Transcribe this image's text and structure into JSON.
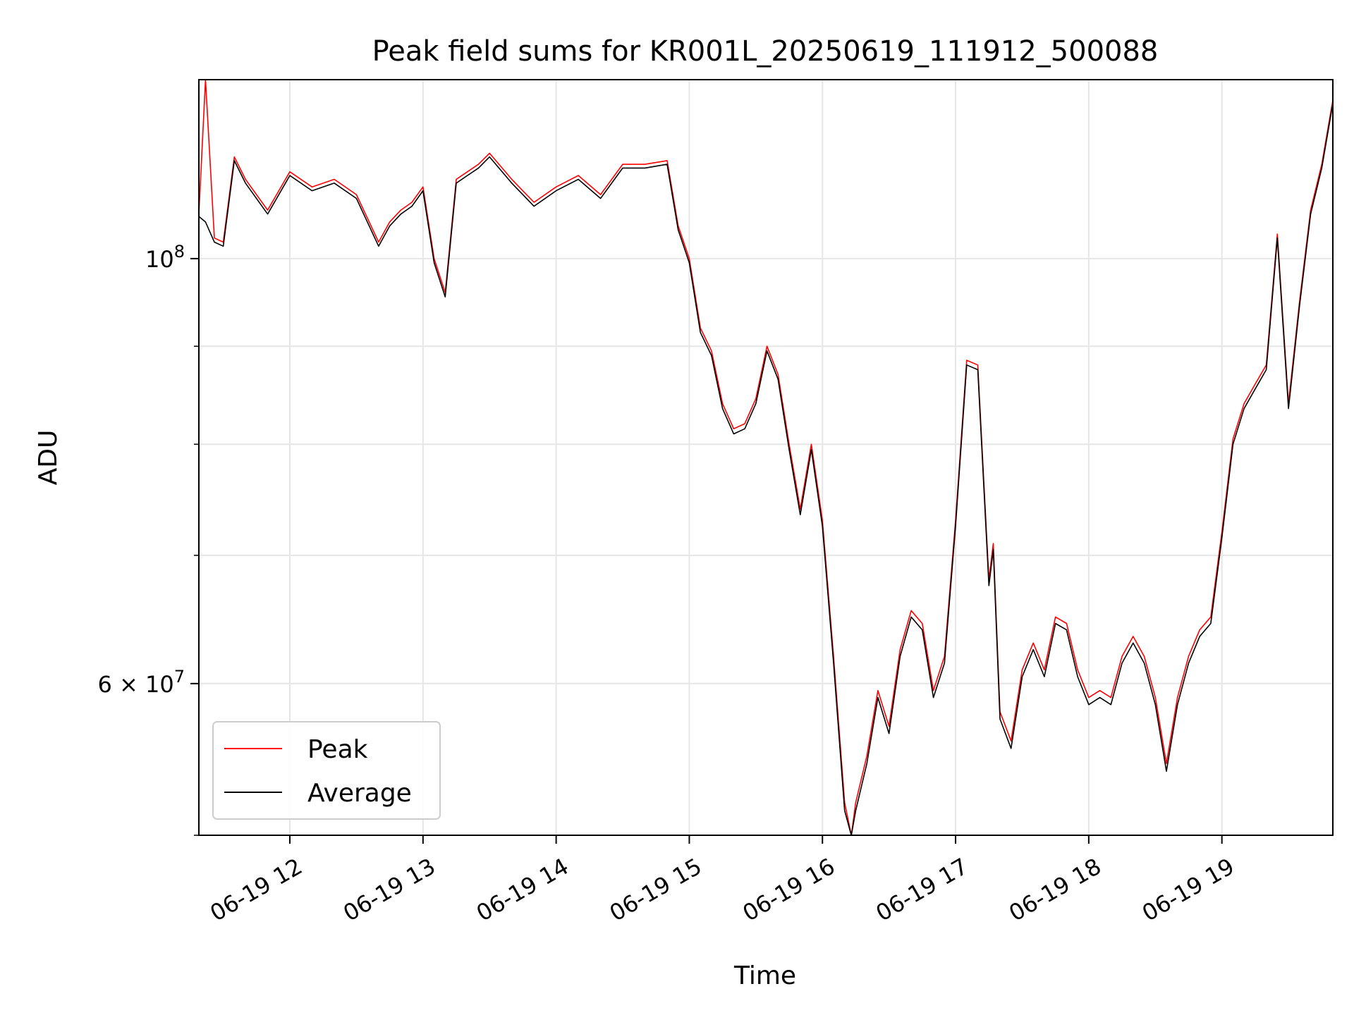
{
  "chart_data": {
    "type": "line",
    "title": "Peak field sums for KR001L_20250619_111912_500088",
    "xlabel": "Time",
    "ylabel": "ADU",
    "yscale": "log",
    "xlim": [
      "2025-06-19 11:19",
      "2025-06-19 19:50"
    ],
    "ylim": [
      50000000,
      124000000
    ],
    "grid": true,
    "legend_position": "lower-left",
    "x_ticks": [
      "06-19 12",
      "06-19 13",
      "06-19 14",
      "06-19 15",
      "06-19 16",
      "06-19 17",
      "06-19 18",
      "06-19 19"
    ],
    "y_tick_labels": [
      {
        "value": 100000000,
        "mantissa": "",
        "base": "10",
        "exp": "8"
      },
      {
        "value": 60000000,
        "mantissa": "6 × ",
        "base": "10",
        "exp": "7"
      }
    ],
    "y_minor_ticks": [
      50000000,
      70000000,
      80000000,
      90000000
    ],
    "x": [
      "2025-06-19 11:19",
      "2025-06-19 11:22",
      "2025-06-19 11:26",
      "2025-06-19 11:30",
      "2025-06-19 11:35",
      "2025-06-19 11:40",
      "2025-06-19 11:50",
      "2025-06-19 12:00",
      "2025-06-19 12:10",
      "2025-06-19 12:20",
      "2025-06-19 12:30",
      "2025-06-19 12:40",
      "2025-06-19 12:45",
      "2025-06-19 12:50",
      "2025-06-19 12:55",
      "2025-06-19 13:00",
      "2025-06-19 13:05",
      "2025-06-19 13:10",
      "2025-06-19 13:15",
      "2025-06-19 13:20",
      "2025-06-19 13:25",
      "2025-06-19 13:30",
      "2025-06-19 13:40",
      "2025-06-19 13:50",
      "2025-06-19 14:00",
      "2025-06-19 14:10",
      "2025-06-19 14:20",
      "2025-06-19 14:30",
      "2025-06-19 14:40",
      "2025-06-19 14:50",
      "2025-06-19 14:55",
      "2025-06-19 15:00",
      "2025-06-19 15:05",
      "2025-06-19 15:10",
      "2025-06-19 15:15",
      "2025-06-19 15:20",
      "2025-06-19 15:25",
      "2025-06-19 15:30",
      "2025-06-19 15:35",
      "2025-06-19 15:40",
      "2025-06-19 15:45",
      "2025-06-19 15:50",
      "2025-06-19 15:55",
      "2025-06-19 16:00",
      "2025-06-19 16:05",
      "2025-06-19 16:10",
      "2025-06-19 16:13",
      "2025-06-19 16:15",
      "2025-06-19 16:20",
      "2025-06-19 16:25",
      "2025-06-19 16:30",
      "2025-06-19 16:35",
      "2025-06-19 16:40",
      "2025-06-19 16:45",
      "2025-06-19 16:50",
      "2025-06-19 16:55",
      "2025-06-19 17:00",
      "2025-06-19 17:05",
      "2025-06-19 17:10",
      "2025-06-19 17:15",
      "2025-06-19 17:17",
      "2025-06-19 17:20",
      "2025-06-19 17:25",
      "2025-06-19 17:30",
      "2025-06-19 17:35",
      "2025-06-19 17:40",
      "2025-06-19 17:45",
      "2025-06-19 17:50",
      "2025-06-19 17:55",
      "2025-06-19 18:00",
      "2025-06-19 18:05",
      "2025-06-19 18:10",
      "2025-06-19 18:15",
      "2025-06-19 18:20",
      "2025-06-19 18:25",
      "2025-06-19 18:30",
      "2025-06-19 18:35",
      "2025-06-19 18:40",
      "2025-06-19 18:45",
      "2025-06-19 18:50",
      "2025-06-19 18:55",
      "2025-06-19 19:00",
      "2025-06-19 19:05",
      "2025-06-19 19:10",
      "2025-06-19 19:15",
      "2025-06-19 19:20",
      "2025-06-19 19:25",
      "2025-06-19 19:30",
      "2025-06-19 19:35",
      "2025-06-19 19:40",
      "2025-06-19 19:45",
      "2025-06-19 19:50"
    ],
    "series": [
      {
        "name": "Peak",
        "color": "#ff0000",
        "values": [
          105500000,
          124000000,
          102500000,
          102000000,
          113000000,
          110000000,
          106000000,
          111000000,
          109000000,
          110000000,
          108000000,
          102000000,
          104500000,
          106000000,
          107000000,
          109000000,
          100000000,
          96000000,
          110000000,
          111000000,
          112000000,
          113500000,
          110000000,
          107000000,
          109000000,
          110500000,
          108000000,
          112000000,
          112000000,
          112500000,
          104000000,
          100000000,
          92000000,
          89500000,
          84000000,
          81500000,
          82000000,
          84500000,
          90000000,
          87000000,
          80000000,
          74000000,
          80000000,
          73000000,
          62000000,
          52000000,
          50000000,
          52000000,
          55000000,
          59500000,
          57000000,
          62500000,
          65500000,
          64500000,
          59500000,
          62000000,
          73000000,
          88500000,
          88000000,
          68000000,
          71000000,
          58000000,
          56000000,
          61000000,
          63000000,
          61000000,
          65000000,
          64500000,
          61000000,
          59000000,
          59500000,
          59000000,
          62000000,
          63500000,
          62000000,
          59000000,
          54500000,
          59000000,
          62000000,
          64000000,
          65000000,
          72000000,
          80500000,
          84000000,
          86000000,
          88000000,
          103000000,
          84000000,
          95000000,
          106000000,
          112000000,
          121000000
        ]
      },
      {
        "name": "Average",
        "color": "#000000",
        "values": [
          105200000,
          104500000,
          102000000,
          101500000,
          112500000,
          109500000,
          105500000,
          110500000,
          108500000,
          109500000,
          107500000,
          101500000,
          104000000,
          105500000,
          106500000,
          108500000,
          99500000,
          95500000,
          109500000,
          110500000,
          111500000,
          113000000,
          109500000,
          106500000,
          108500000,
          110000000,
          107500000,
          111500000,
          111500000,
          112000000,
          103500000,
          99500000,
          91500000,
          89000000,
          83500000,
          81000000,
          81500000,
          84000000,
          89500000,
          86500000,
          79500000,
          73500000,
          79500000,
          72500000,
          61500000,
          51500000,
          49800000,
          51500000,
          54500000,
          59000000,
          56500000,
          62000000,
          65000000,
          64000000,
          59000000,
          61500000,
          72500000,
          88000000,
          87500000,
          67500000,
          70500000,
          57500000,
          55500000,
          60500000,
          62500000,
          60500000,
          64500000,
          64000000,
          60500000,
          58500000,
          59000000,
          58500000,
          61500000,
          63000000,
          61500000,
          58500000,
          54000000,
          58500000,
          61500000,
          63500000,
          64500000,
          71500000,
          80000000,
          83500000,
          85500000,
          87500000,
          102500000,
          83500000,
          94500000,
          105500000,
          111500000,
          120500000
        ]
      }
    ]
  }
}
